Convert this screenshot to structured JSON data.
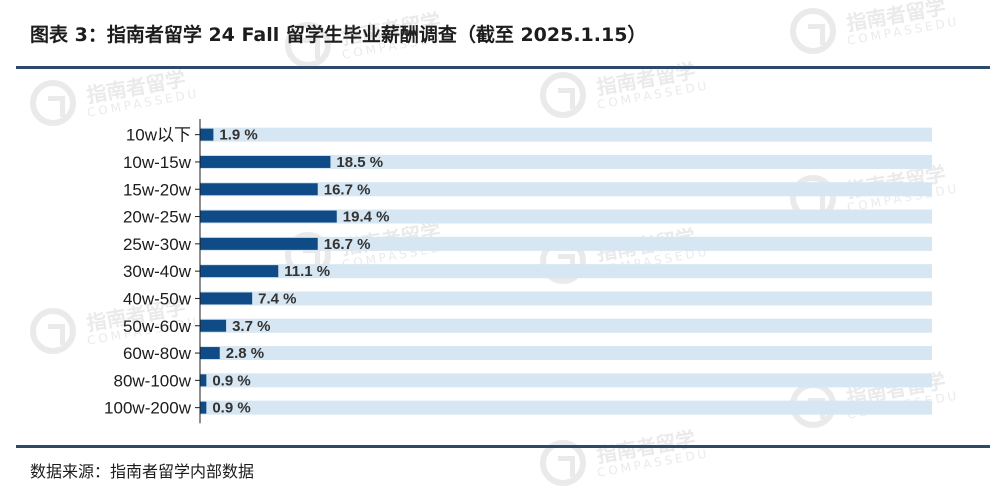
{
  "header": {
    "title": "图表 3：指南者留学 24 Fall 留学生毕业薪酬调查（截至 2025.1.15）"
  },
  "footer": {
    "source": "数据来源：指南者留学内部数据"
  },
  "watermark": {
    "name": "指南者留学",
    "sub": "COMPASSEDU"
  },
  "chart_data": {
    "type": "bar",
    "orientation": "horizontal",
    "categories": [
      "10w以下",
      "10w-15w",
      "15w-20w",
      "20w-25w",
      "25w-30w",
      "30w-40w",
      "40w-50w",
      "50w-60w",
      "60w-80w",
      "80w-100w",
      "100w-200w"
    ],
    "values": [
      1.9,
      18.5,
      16.7,
      19.4,
      16.7,
      11.1,
      7.4,
      3.7,
      2.8,
      0.9,
      0.9
    ],
    "value_labels": [
      "1.9 %",
      "18.5 %",
      "16.7 %",
      "19.4 %",
      "16.7 %",
      "11.1 %",
      "7.4 %",
      "3.7 %",
      "2.8 %",
      "0.9 %",
      "0.9 %"
    ],
    "xlim": [
      0,
      100
    ],
    "colors": {
      "bar": "#0f4c87",
      "track": "#d6e6f2",
      "axis": "#1c1c1c",
      "text": "#1c1c1c"
    }
  }
}
